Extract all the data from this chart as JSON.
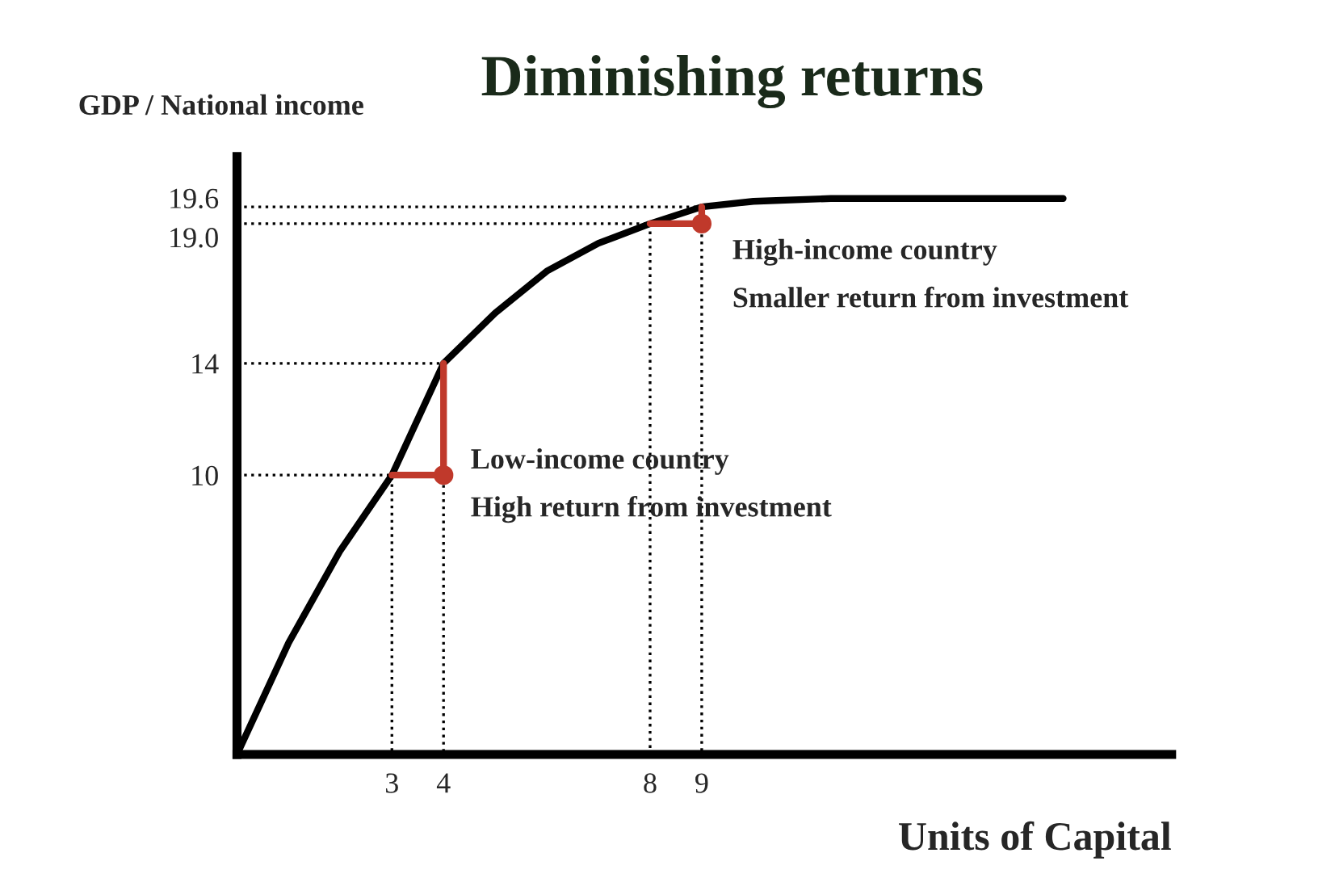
{
  "chart_data": {
    "type": "line",
    "title": "Diminishing returns",
    "xlabel": "Units of Capital",
    "ylabel": "GDP / National income",
    "xlim": [
      0,
      18.1
    ],
    "ylim": [
      0,
      21.4
    ],
    "xticks": [
      3,
      4,
      8,
      9
    ],
    "yticks": [
      10,
      14,
      {
        "value": 19.0,
        "label": "19.0"
      },
      19.6
    ],
    "grid": false,
    "legend": false,
    "series": [
      {
        "color": "#000000",
        "x": [
          0,
          1,
          2,
          3,
          4,
          5,
          6,
          7,
          8,
          9,
          10,
          11.5,
          16
        ],
        "values": [
          0,
          4,
          7.3,
          10,
          14,
          15.8,
          17.3,
          18.3,
          19.0,
          19.6,
          19.8,
          19.9,
          19.9
        ]
      },
      {
        "color": "#000000",
        "line_style": "dotted",
        "x": [
          0,
          3,
          3
        ],
        "values": [
          10,
          10,
          0
        ]
      },
      {
        "color": "#000000",
        "line_style": "dotted",
        "x": [
          0,
          4,
          4
        ],
        "values": [
          14,
          14,
          0
        ]
      },
      {
        "color": "#000000",
        "line_style": "dotted",
        "x": [
          0,
          8,
          8
        ],
        "values": [
          19.0,
          19.0,
          0
        ]
      },
      {
        "color": "#000000",
        "line_style": "dotted",
        "x": [
          0,
          9,
          9
        ],
        "values": [
          19.6,
          19.6,
          0
        ]
      },
      {
        "color": "#c0392b",
        "x": [
          3,
          4,
          4
        ],
        "values": [
          10,
          10,
          14
        ]
      },
      {
        "color": "#c0392b",
        "x": [
          8,
          9,
          9
        ],
        "values": [
          19.0,
          19.0,
          19.6
        ]
      },
      {
        "type": "scatter",
        "color": "#c0392b",
        "x": [
          4,
          9
        ],
        "values": [
          10,
          19.0
        ]
      }
    ],
    "annotations": [
      "Low-income country",
      "High return from investment",
      "High-income country",
      "Smaller return from investment"
    ]
  }
}
